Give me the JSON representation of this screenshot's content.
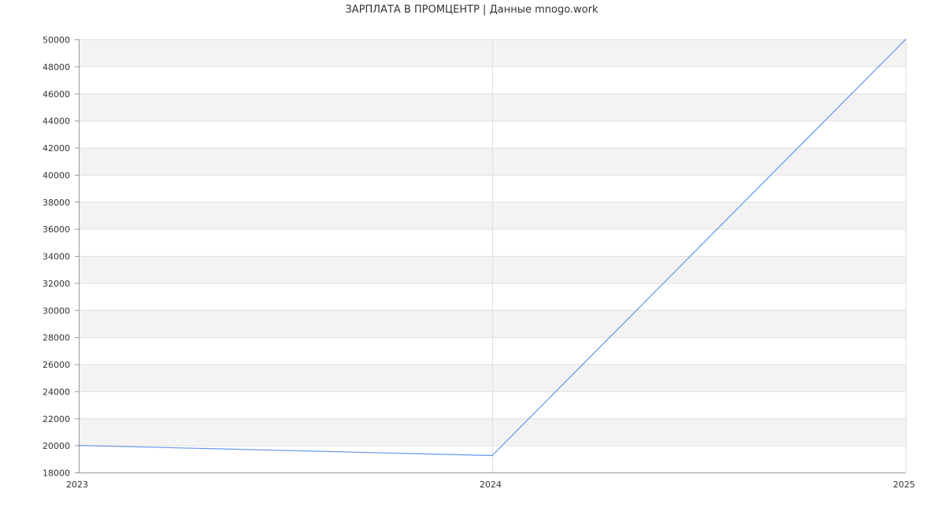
{
  "chart_data": {
    "type": "line",
    "title": "ЗАРПЛАТА В ПРОМЦЕНТР | Данные mnogo.work",
    "xlabel": "",
    "ylabel": "",
    "x": [
      "2023",
      "2024",
      "2025"
    ],
    "series": [
      {
        "values": [
          20000,
          19250,
          50000
        ],
        "color": "#6495ed"
      }
    ],
    "ylim": [
      18000,
      50000
    ],
    "yticks": [
      18000,
      20000,
      22000,
      24000,
      26000,
      28000,
      30000,
      32000,
      34000,
      36000,
      38000,
      40000,
      42000,
      44000,
      46000,
      48000,
      50000
    ],
    "grid": true,
    "band_color": "#f3f3f3"
  }
}
